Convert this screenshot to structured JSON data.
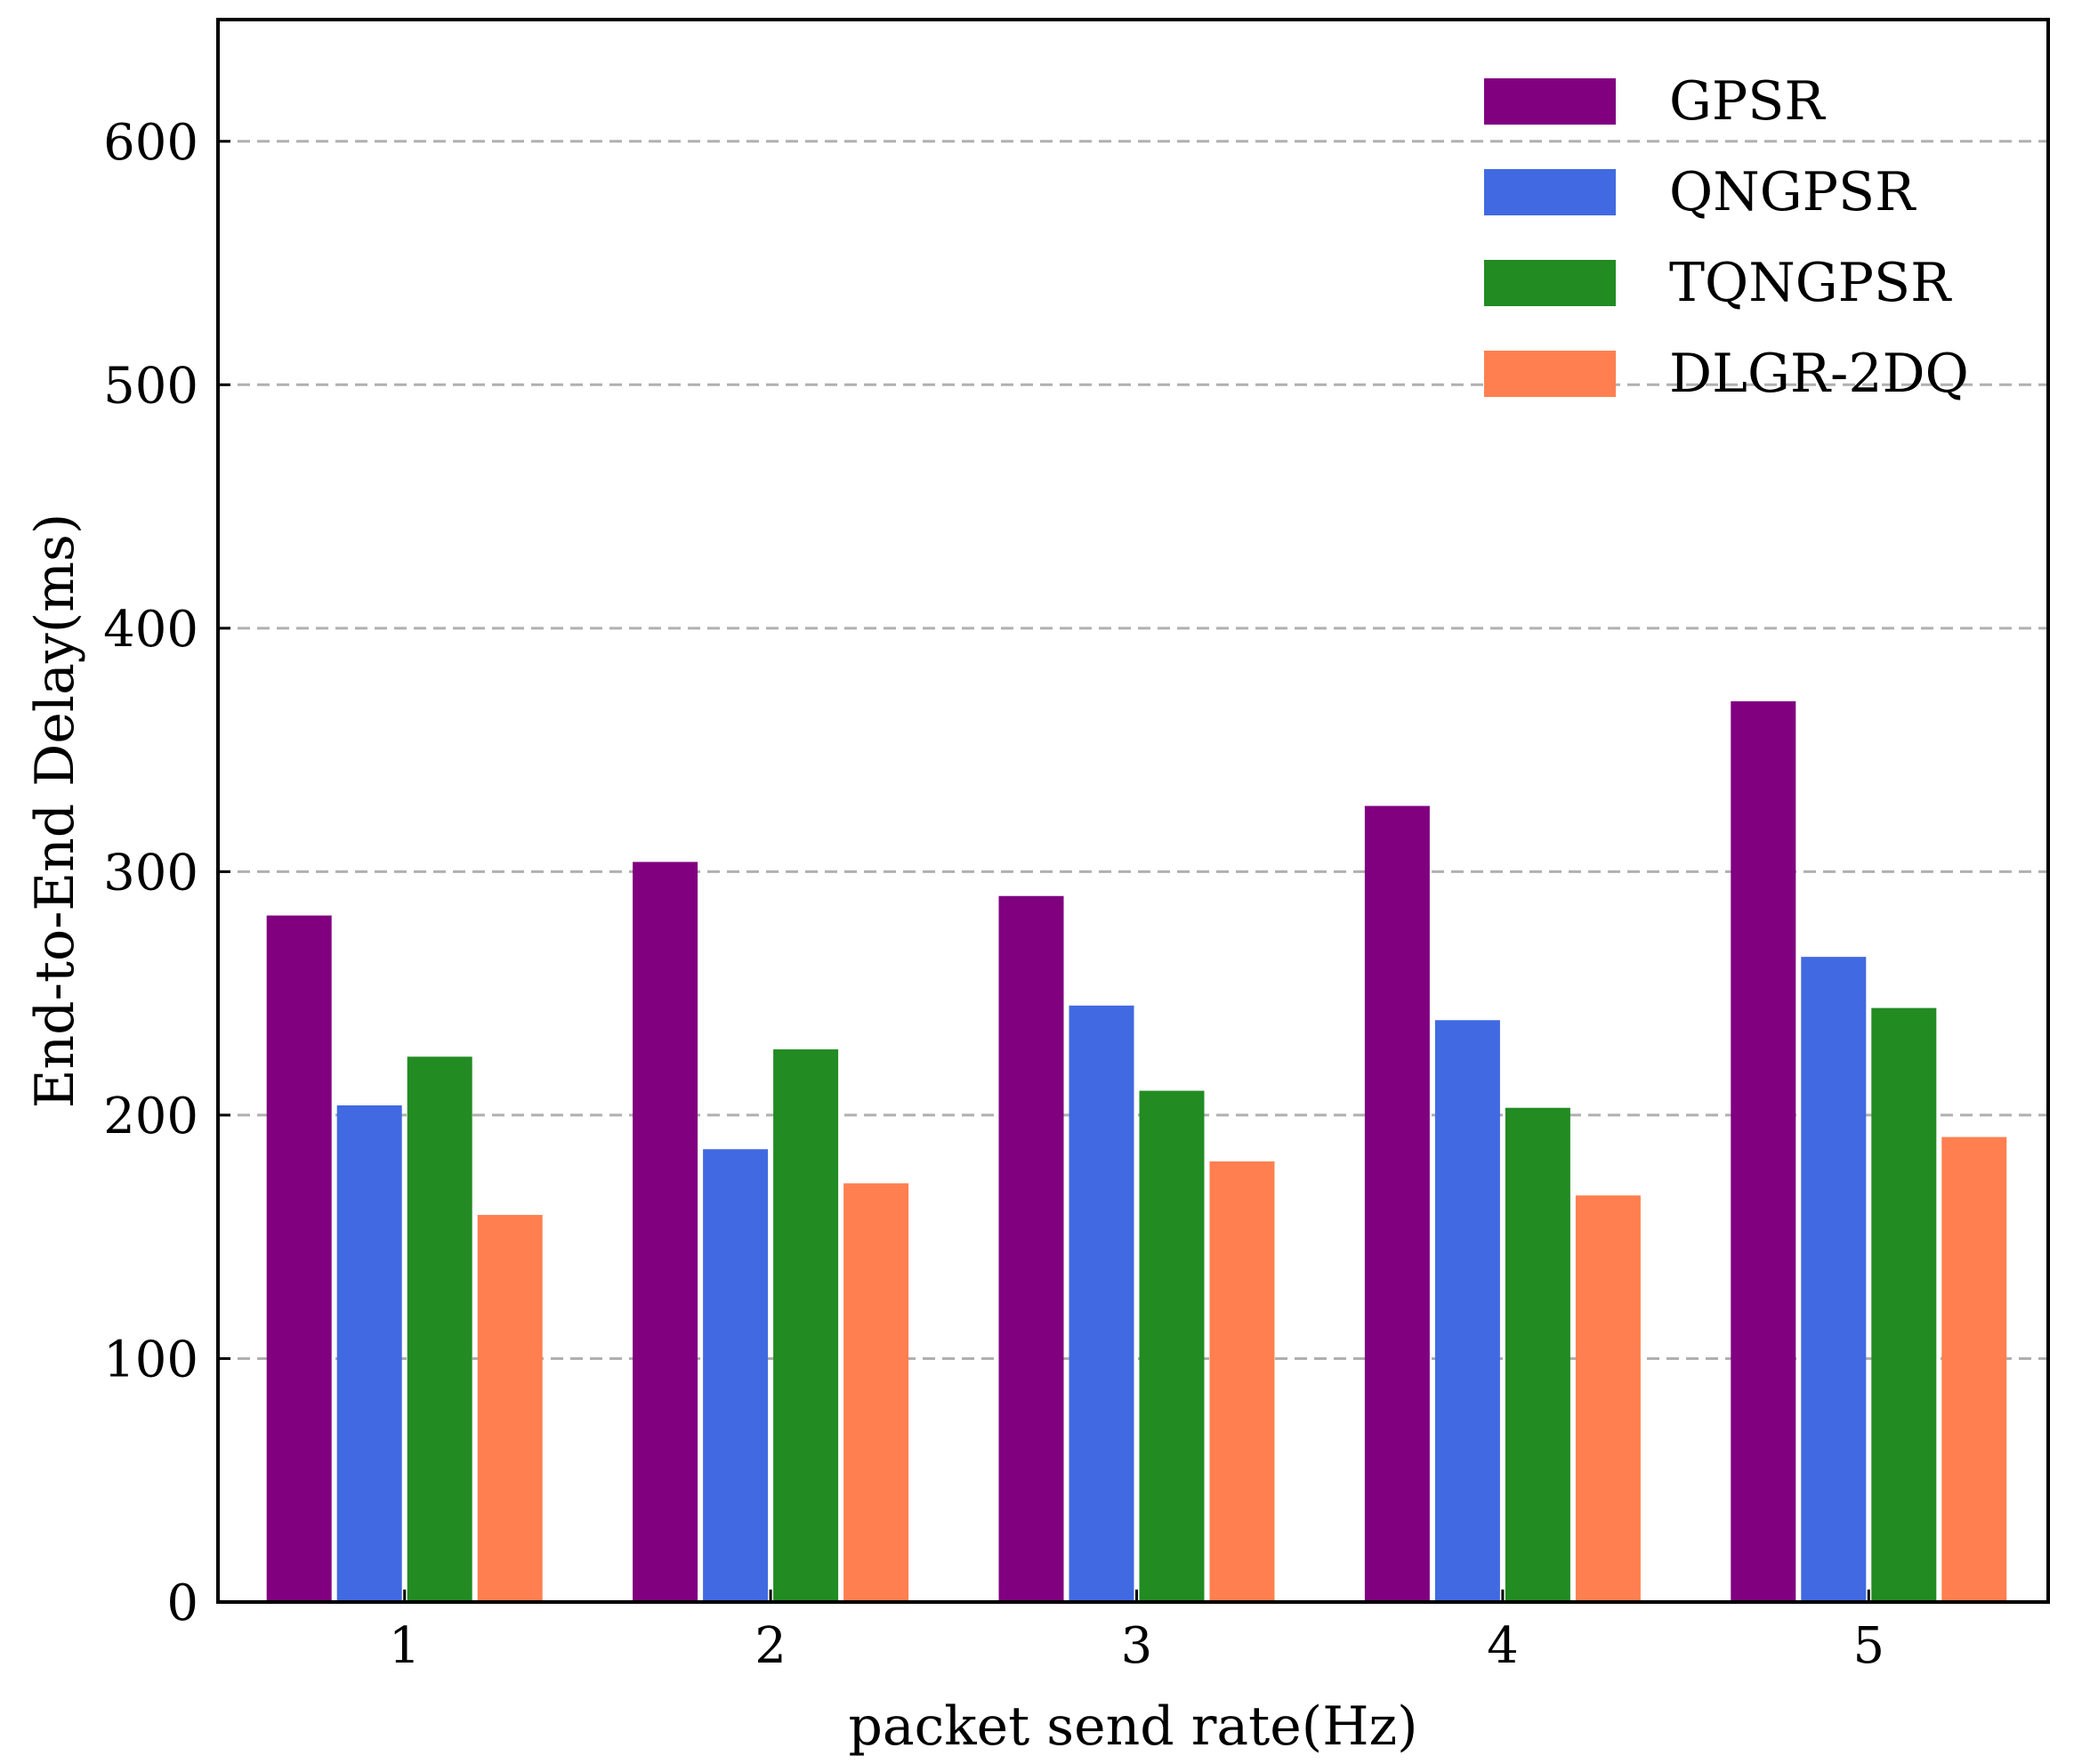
{
  "chart_data": {
    "type": "bar",
    "title": "",
    "xlabel": "packet send rate(Hz)",
    "ylabel": "End-to-End Delay(ms)",
    "categories": [
      "1",
      "2",
      "3",
      "4",
      "5"
    ],
    "ylim": [
      0,
      650
    ],
    "yticks": [
      0,
      100,
      200,
      300,
      400,
      500,
      600
    ],
    "ytick_labels": [
      "0",
      "100",
      "200",
      "300",
      "400",
      "500",
      "600"
    ],
    "grid": "horizontal-dashed",
    "legend_position": "top-right",
    "series": [
      {
        "name": "GPSR",
        "color": "#800080",
        "values": [
          282,
          304,
          290,
          327,
          370
        ]
      },
      {
        "name": "QNGPSR",
        "color": "#4169e1",
        "values": [
          204,
          186,
          245,
          239,
          265
        ]
      },
      {
        "name": "TQNGPSR",
        "color": "#228b22",
        "values": [
          224,
          227,
          210,
          203,
          244
        ]
      },
      {
        "name": "DLGR-2DQ",
        "color": "#ff7f50",
        "values": [
          159,
          172,
          181,
          167,
          191
        ]
      }
    ]
  }
}
